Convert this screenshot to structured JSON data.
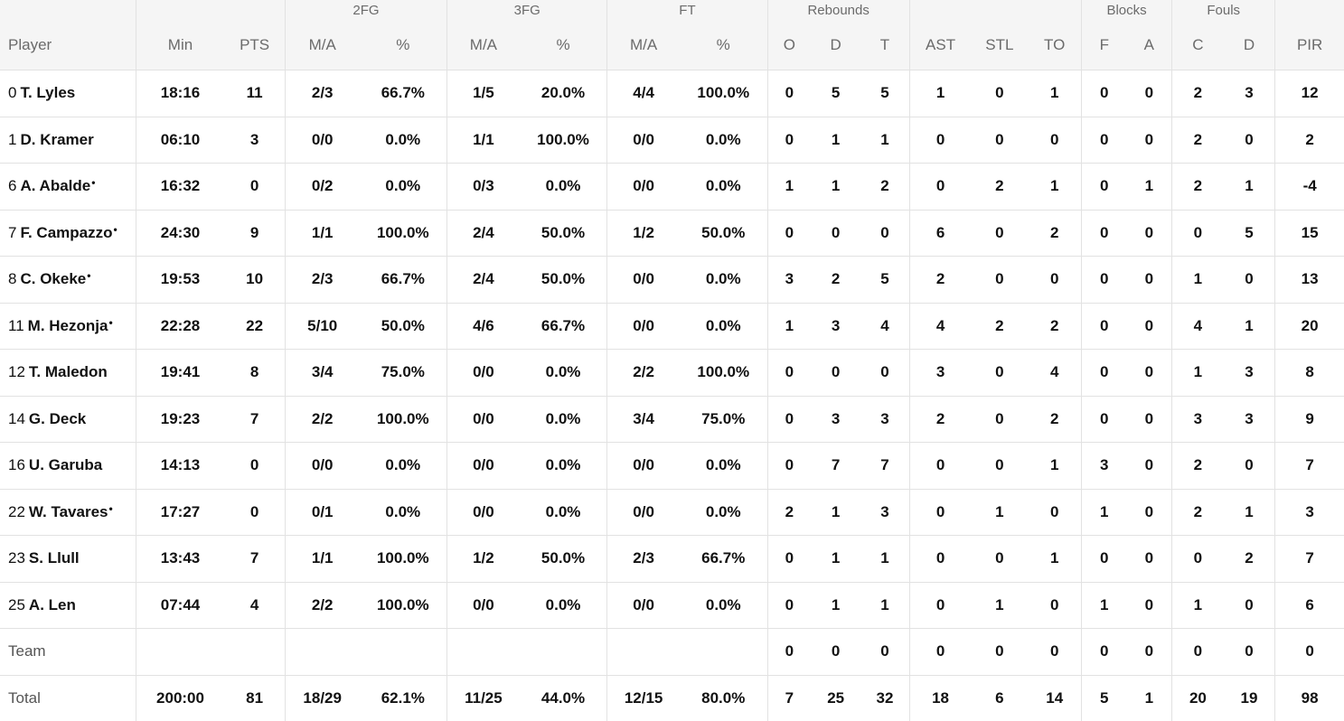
{
  "headers": {
    "groups": {
      "fg2": "2FG",
      "fg3": "3FG",
      "ft": "FT",
      "rebounds": "Rebounds",
      "blocks": "Blocks",
      "fouls": "Fouls"
    },
    "columns": {
      "player": "Player",
      "min": "Min",
      "pts": "PTS",
      "fg2_ma": "M/A",
      "fg2_pct": "%",
      "fg3_ma": "M/A",
      "fg3_pct": "%",
      "ft_ma": "M/A",
      "ft_pct": "%",
      "reb_o": "O",
      "reb_d": "D",
      "reb_t": "T",
      "ast": "AST",
      "stl": "STL",
      "to": "TO",
      "blk_f": "F",
      "blk_a": "A",
      "foul_c": "C",
      "foul_d": "D",
      "pir": "PIR"
    }
  },
  "players": [
    {
      "num": "0",
      "name": "T. Lyles",
      "starter": "",
      "min": "18:16",
      "pts": "11",
      "fg2_ma": "2/3",
      "fg2_pct": "66.7%",
      "fg3_ma": "1/5",
      "fg3_pct": "20.0%",
      "ft_ma": "4/4",
      "ft_pct": "100.0%",
      "reb_o": "0",
      "reb_d": "5",
      "reb_t": "5",
      "ast": "1",
      "stl": "0",
      "to": "1",
      "blk_f": "0",
      "blk_a": "0",
      "foul_c": "2",
      "foul_d": "3",
      "pir": "12"
    },
    {
      "num": "1",
      "name": "D. Kramer",
      "starter": "",
      "min": "06:10",
      "pts": "3",
      "fg2_ma": "0/0",
      "fg2_pct": "0.0%",
      "fg3_ma": "1/1",
      "fg3_pct": "100.0%",
      "ft_ma": "0/0",
      "ft_pct": "0.0%",
      "reb_o": "0",
      "reb_d": "1",
      "reb_t": "1",
      "ast": "0",
      "stl": "0",
      "to": "0",
      "blk_f": "0",
      "blk_a": "0",
      "foul_c": "2",
      "foul_d": "0",
      "pir": "2"
    },
    {
      "num": "6",
      "name": "A. Abalde",
      "starter": "•",
      "min": "16:32",
      "pts": "0",
      "fg2_ma": "0/2",
      "fg2_pct": "0.0%",
      "fg3_ma": "0/3",
      "fg3_pct": "0.0%",
      "ft_ma": "0/0",
      "ft_pct": "0.0%",
      "reb_o": "1",
      "reb_d": "1",
      "reb_t": "2",
      "ast": "0",
      "stl": "2",
      "to": "1",
      "blk_f": "0",
      "blk_a": "1",
      "foul_c": "2",
      "foul_d": "1",
      "pir": "-4"
    },
    {
      "num": "7",
      "name": "F. Campazzo",
      "starter": "•",
      "min": "24:30",
      "pts": "9",
      "fg2_ma": "1/1",
      "fg2_pct": "100.0%",
      "fg3_ma": "2/4",
      "fg3_pct": "50.0%",
      "ft_ma": "1/2",
      "ft_pct": "50.0%",
      "reb_o": "0",
      "reb_d": "0",
      "reb_t": "0",
      "ast": "6",
      "stl": "0",
      "to": "2",
      "blk_f": "0",
      "blk_a": "0",
      "foul_c": "0",
      "foul_d": "5",
      "pir": "15"
    },
    {
      "num": "8",
      "name": "C. Okeke",
      "starter": "•",
      "min": "19:53",
      "pts": "10",
      "fg2_ma": "2/3",
      "fg2_pct": "66.7%",
      "fg3_ma": "2/4",
      "fg3_pct": "50.0%",
      "ft_ma": "0/0",
      "ft_pct": "0.0%",
      "reb_o": "3",
      "reb_d": "2",
      "reb_t": "5",
      "ast": "2",
      "stl": "0",
      "to": "0",
      "blk_f": "0",
      "blk_a": "0",
      "foul_c": "1",
      "foul_d": "0",
      "pir": "13"
    },
    {
      "num": "11",
      "name": "M. Hezonja",
      "starter": "•",
      "min": "22:28",
      "pts": "22",
      "fg2_ma": "5/10",
      "fg2_pct": "50.0%",
      "fg3_ma": "4/6",
      "fg3_pct": "66.7%",
      "ft_ma": "0/0",
      "ft_pct": "0.0%",
      "reb_o": "1",
      "reb_d": "3",
      "reb_t": "4",
      "ast": "4",
      "stl": "2",
      "to": "2",
      "blk_f": "0",
      "blk_a": "0",
      "foul_c": "4",
      "foul_d": "1",
      "pir": "20"
    },
    {
      "num": "12",
      "name": "T. Maledon",
      "starter": "",
      "min": "19:41",
      "pts": "8",
      "fg2_ma": "3/4",
      "fg2_pct": "75.0%",
      "fg3_ma": "0/0",
      "fg3_pct": "0.0%",
      "ft_ma": "2/2",
      "ft_pct": "100.0%",
      "reb_o": "0",
      "reb_d": "0",
      "reb_t": "0",
      "ast": "3",
      "stl": "0",
      "to": "4",
      "blk_f": "0",
      "blk_a": "0",
      "foul_c": "1",
      "foul_d": "3",
      "pir": "8"
    },
    {
      "num": "14",
      "name": "G. Deck",
      "starter": "",
      "min": "19:23",
      "pts": "7",
      "fg2_ma": "2/2",
      "fg2_pct": "100.0%",
      "fg3_ma": "0/0",
      "fg3_pct": "0.0%",
      "ft_ma": "3/4",
      "ft_pct": "75.0%",
      "reb_o": "0",
      "reb_d": "3",
      "reb_t": "3",
      "ast": "2",
      "stl": "0",
      "to": "2",
      "blk_f": "0",
      "blk_a": "0",
      "foul_c": "3",
      "foul_d": "3",
      "pir": "9"
    },
    {
      "num": "16",
      "name": "U. Garuba",
      "starter": "",
      "min": "14:13",
      "pts": "0",
      "fg2_ma": "0/0",
      "fg2_pct": "0.0%",
      "fg3_ma": "0/0",
      "fg3_pct": "0.0%",
      "ft_ma": "0/0",
      "ft_pct": "0.0%",
      "reb_o": "0",
      "reb_d": "7",
      "reb_t": "7",
      "ast": "0",
      "stl": "0",
      "to": "1",
      "blk_f": "3",
      "blk_a": "0",
      "foul_c": "2",
      "foul_d": "0",
      "pir": "7"
    },
    {
      "num": "22",
      "name": "W. Tavares",
      "starter": "•",
      "min": "17:27",
      "pts": "0",
      "fg2_ma": "0/1",
      "fg2_pct": "0.0%",
      "fg3_ma": "0/0",
      "fg3_pct": "0.0%",
      "ft_ma": "0/0",
      "ft_pct": "0.0%",
      "reb_o": "2",
      "reb_d": "1",
      "reb_t": "3",
      "ast": "0",
      "stl": "1",
      "to": "0",
      "blk_f": "1",
      "blk_a": "0",
      "foul_c": "2",
      "foul_d": "1",
      "pir": "3"
    },
    {
      "num": "23",
      "name": "S. Llull",
      "starter": "",
      "min": "13:43",
      "pts": "7",
      "fg2_ma": "1/1",
      "fg2_pct": "100.0%",
      "fg3_ma": "1/2",
      "fg3_pct": "50.0%",
      "ft_ma": "2/3",
      "ft_pct": "66.7%",
      "reb_o": "0",
      "reb_d": "1",
      "reb_t": "1",
      "ast": "0",
      "stl": "0",
      "to": "1",
      "blk_f": "0",
      "blk_a": "0",
      "foul_c": "0",
      "foul_d": "2",
      "pir": "7"
    },
    {
      "num": "25",
      "name": "A. Len",
      "starter": "",
      "min": "07:44",
      "pts": "4",
      "fg2_ma": "2/2",
      "fg2_pct": "100.0%",
      "fg3_ma": "0/0",
      "fg3_pct": "0.0%",
      "ft_ma": "0/0",
      "ft_pct": "0.0%",
      "reb_o": "0",
      "reb_d": "1",
      "reb_t": "1",
      "ast": "0",
      "stl": "1",
      "to": "0",
      "blk_f": "1",
      "blk_a": "0",
      "foul_c": "1",
      "foul_d": "0",
      "pir": "6"
    }
  ],
  "team": {
    "label": "Team",
    "min": "",
    "pts": "",
    "fg2_ma": "",
    "fg2_pct": "",
    "fg3_ma": "",
    "fg3_pct": "",
    "ft_ma": "",
    "ft_pct": "",
    "reb_o": "0",
    "reb_d": "0",
    "reb_t": "0",
    "ast": "0",
    "stl": "0",
    "to": "0",
    "blk_f": "0",
    "blk_a": "0",
    "foul_c": "0",
    "foul_d": "0",
    "pir": "0"
  },
  "total": {
    "label": "Total",
    "min": "200:00",
    "pts": "81",
    "fg2_ma": "18/29",
    "fg2_pct": "62.1%",
    "fg3_ma": "11/25",
    "fg3_pct": "44.0%",
    "ft_ma": "12/15",
    "ft_pct": "80.0%",
    "reb_o": "7",
    "reb_d": "25",
    "reb_t": "32",
    "ast": "18",
    "stl": "6",
    "to": "14",
    "blk_f": "5",
    "blk_a": "1",
    "foul_c": "20",
    "foul_d": "19",
    "pir": "98"
  }
}
